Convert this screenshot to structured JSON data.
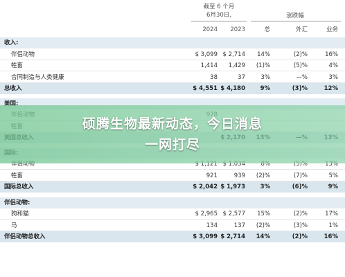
{
  "header": {
    "period_line1": "截至 6 个月",
    "period_line2": "6月30日,",
    "change_group": "涨跌幅",
    "col_2024": "2024",
    "col_2023": "2023",
    "col_total": "总",
    "col_fx": "外汇",
    "col_business": "业务"
  },
  "rows": [
    {
      "label": "收入:",
      "kind": "section"
    },
    {
      "label": "伴侣动物",
      "kind": "plain",
      "v2024": "$ 3,099",
      "v2023": "$ 2,714",
      "total": "14%",
      "fx": "(2)%",
      "biz": "16%"
    },
    {
      "label": "牲畜",
      "kind": "plain",
      "v2024": "1,414",
      "v2023": "1,429",
      "total": "(1)%",
      "fx": "(5)%",
      "biz": "4%"
    },
    {
      "label": "合同制造与人类健康",
      "kind": "plain",
      "v2024": "38",
      "v2023": "37",
      "total": "3%",
      "fx": "—%",
      "biz": "3%"
    },
    {
      "label": "总收入",
      "kind": "total",
      "v2024": "$ 4,551",
      "v2023": "$ 4,180",
      "total": "9%",
      "fx": "(3)%",
      "biz": "12%"
    },
    {
      "label": "美国:",
      "kind": "section"
    },
    {
      "label": "伴侣动物",
      "kind": "plain",
      "v2024": "978",
      "v2023": "",
      "total": "",
      "fx": "",
      "biz": ""
    },
    {
      "label": "牲畜",
      "kind": "plain",
      "v2024": "",
      "v2023": "",
      "total": "",
      "fx": "",
      "biz": ""
    },
    {
      "label": "美国总收入",
      "kind": "total",
      "v2024": "",
      "v2023": "$ 2,170",
      "total": "13%",
      "fx": "—%",
      "biz": "13%"
    },
    {
      "label": "国际:",
      "kind": "section"
    },
    {
      "label": "伴侣动物",
      "kind": "plain",
      "v2024": "$ 1,121",
      "v2023": "$ 1,034",
      "total": "8%",
      "fx": "(5)%",
      "biz": "13%"
    },
    {
      "label": "牲畜",
      "kind": "plain",
      "v2024": "921",
      "v2023": "939",
      "total": "(2)%",
      "fx": "(7)%",
      "biz": "5%"
    },
    {
      "label": "国际总收入",
      "kind": "total",
      "v2024": "$ 2,042",
      "v2023": "$ 1,973",
      "total": "3%",
      "fx": "(6)%",
      "biz": "9%"
    },
    {
      "label": "伴侣动物:",
      "kind": "section"
    },
    {
      "label": "狗和猫",
      "kind": "plain",
      "v2024": "$ 2,965",
      "v2023": "$ 2,577",
      "total": "15%",
      "fx": "(2)%",
      "biz": "17%"
    },
    {
      "label": "马",
      "kind": "plain",
      "v2024": "134",
      "v2023": "137",
      "total": "(2)%",
      "fx": "(3)%",
      "biz": "1%"
    },
    {
      "label": "伴侣动物总收入",
      "kind": "total",
      "v2024": "$ 3,099",
      "v2023": "$ 2,714",
      "total": "14%",
      "fx": "(2)%",
      "biz": "16%"
    }
  ],
  "banner": {
    "line1": "硕腾生物最新动态，今日消息",
    "line2": "一网打尽"
  }
}
